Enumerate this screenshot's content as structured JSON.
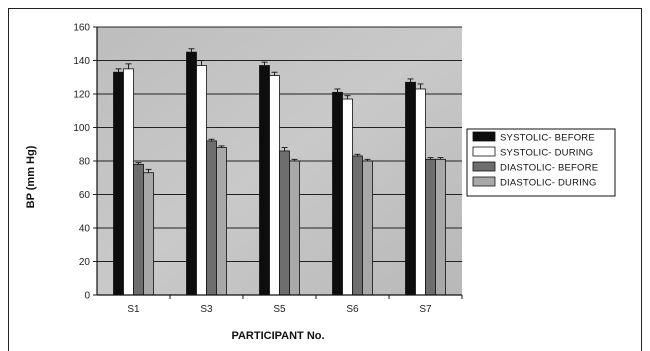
{
  "chart_data": {
    "type": "bar",
    "title": "",
    "xlabel": "PARTICIPANT No.",
    "ylabel": "BP (mm Hg)",
    "ylim": [
      0,
      160
    ],
    "yticks": [
      0,
      20,
      40,
      60,
      80,
      100,
      120,
      140,
      160
    ],
    "grid": true,
    "legend_position": "right",
    "categories": [
      "S1",
      "S3",
      "S5",
      "S6",
      "S7"
    ],
    "series": [
      {
        "name": "SYSTOLIC- BEFORE",
        "color": "#0d0d0d",
        "values": [
          133,
          145,
          137,
          121,
          127
        ],
        "errors": [
          2,
          2,
          2,
          2,
          2
        ]
      },
      {
        "name": "SYSTOLIC- DURING",
        "color": "#ffffff",
        "values": [
          135,
          137,
          131,
          117,
          123
        ],
        "errors": [
          3,
          3,
          2,
          2,
          3
        ]
      },
      {
        "name": "DIASTOLIC- BEFORE",
        "color": "#6e6e6e",
        "values": [
          78,
          92,
          86,
          83,
          81
        ],
        "errors": [
          1,
          1,
          2,
          1,
          1
        ]
      },
      {
        "name": "DIASTOLIC- DURING",
        "color": "#a8a8a8",
        "values": [
          73,
          88,
          80,
          80,
          81
        ],
        "errors": [
          2,
          1,
          1,
          1,
          1
        ]
      }
    ]
  }
}
